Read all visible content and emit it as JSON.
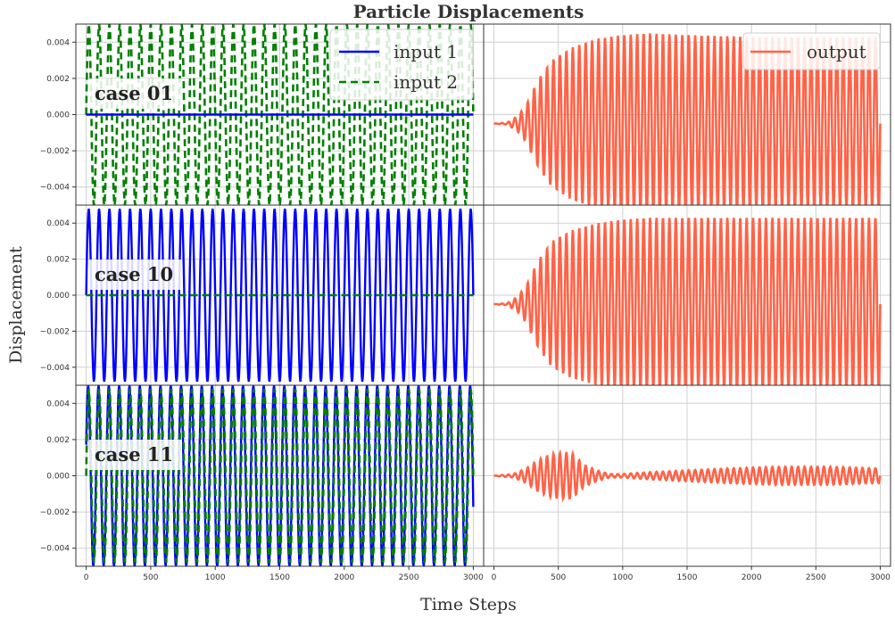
{
  "chart_data": {
    "type": "line",
    "title": "Particle Displacements",
    "xlabel": "Time Steps",
    "ylabel": "Displacement",
    "xlim": [
      -80,
      3080
    ],
    "ylim": [
      -0.005,
      0.005
    ],
    "x_ticks": [
      "0",
      "500",
      "1000",
      "1500",
      "2000",
      "2500",
      "3000"
    ],
    "x_tick_values": [
      0,
      500,
      1000,
      1500,
      2000,
      2500,
      3000
    ],
    "y_ticks": [
      "0.004",
      "0.002",
      "0.000",
      "−0.002",
      "−0.004"
    ],
    "y_tick_values": [
      0.004,
      0.002,
      0,
      -0.002,
      -0.004
    ],
    "grid": true,
    "legends": {
      "inputs": {
        "placement": "top-right",
        "entries": [
          "input 1",
          "input 2"
        ]
      },
      "output": {
        "placement": "top-right",
        "entries": [
          "output"
        ]
      }
    },
    "colors": {
      "input1": "#0000ff",
      "input2": "#008000",
      "output": "#ff6347"
    },
    "rows": [
      {
        "case_label": "case 01",
        "input_1": {
          "name": "input 1",
          "amplitude": 0.0,
          "period": 80
        },
        "input_2": {
          "name": "input 2",
          "amplitude": 0.005,
          "period": 80
        },
        "output": {
          "name": "output",
          "envelope_x": [
            0,
            100,
            180,
            250,
            300,
            350,
            450,
            600,
            800,
            1000,
            1200,
            1500,
            2000,
            2500,
            3000
          ],
          "envelope_y": [
            0.0,
            5e-05,
            0.0004,
            0.001,
            0.0018,
            0.0025,
            0.0035,
            0.0042,
            0.0047,
            0.0049,
            0.005,
            0.0049,
            0.0048,
            0.0048,
            0.0048
          ],
          "offset": -0.0005,
          "period": 50
        }
      },
      {
        "case_label": "case 10",
        "input_1": {
          "name": "input 1",
          "amplitude": 0.0048,
          "period": 80
        },
        "input_2": {
          "name": "input 2",
          "amplitude": 0.0,
          "period": 80
        },
        "output": {
          "name": "output",
          "envelope_x": [
            0,
            100,
            180,
            250,
            300,
            350,
            450,
            600,
            800,
            1000,
            1200,
            1500,
            2000,
            2500,
            3000
          ],
          "envelope_y": [
            0.0,
            5e-05,
            0.0004,
            0.001,
            0.0018,
            0.0025,
            0.0035,
            0.0041,
            0.0045,
            0.0047,
            0.0048,
            0.0048,
            0.0048,
            0.0048,
            0.0048
          ],
          "offset": -0.0005,
          "period": 50
        }
      },
      {
        "case_label": "case 11",
        "input_1": {
          "name": "input 1",
          "amplitude": 0.005,
          "period": 80
        },
        "input_2": {
          "name": "input 2",
          "amplitude": 0.0048,
          "period": 80
        },
        "output": {
          "name": "output",
          "envelope_x": [
            0,
            150,
            250,
            350,
            450,
            600,
            700,
            800,
            900,
            1000,
            1200,
            1500,
            1800,
            2200,
            2600,
            3000
          ],
          "envelope_y": [
            0.0,
            0.0001,
            0.0004,
            0.0009,
            0.0012,
            0.0013,
            0.0006,
            0.0003,
            0.0001,
            0.0001,
            0.0002,
            0.0003,
            0.0004,
            0.0005,
            0.0005,
            0.0004
          ],
          "offset": 0.0,
          "period": 50
        }
      }
    ]
  }
}
